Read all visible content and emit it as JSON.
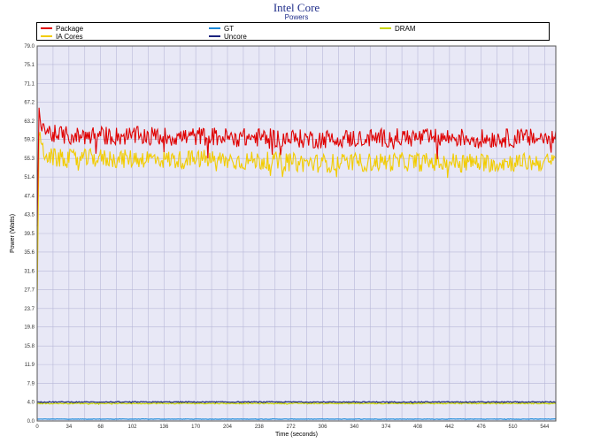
{
  "chart_data": {
    "type": "line",
    "title": "Intel Core",
    "subtitle": "Powers",
    "xlabel": "Time (seconds)",
    "ylabel": "Power (Watts)",
    "xlim": [
      0,
      556
    ],
    "ylim": [
      0,
      79.0
    ],
    "xticks": [
      "0",
      "34",
      "68",
      "102",
      "136",
      "170",
      "204",
      "238",
      "272",
      "306",
      "340",
      "374",
      "408",
      "442",
      "476",
      "510",
      "544"
    ],
    "yticks": [
      "0.0",
      "4.0",
      "7.9",
      "11.9",
      "15.8",
      "19.8",
      "23.7",
      "27.7",
      "31.6",
      "35.6",
      "39.5",
      "43.5",
      "47.4",
      "51.4",
      "55.3",
      "59.3",
      "63.2",
      "67.2",
      "71.1",
      "75.1",
      "79.0"
    ],
    "grid": true,
    "legend_position": "top",
    "series": [
      {
        "name": "Package",
        "color": "#e00000",
        "x": [
          0,
          2,
          4,
          8,
          15,
          25,
          40,
          60,
          90,
          120,
          150,
          180,
          210,
          240,
          270,
          300,
          330,
          360,
          390,
          420,
          450,
          480,
          510,
          540,
          556
        ],
        "values": [
          41.0,
          66.0,
          63.5,
          61.5,
          60.5,
          60.2,
          60.0,
          60.2,
          60.0,
          60.1,
          59.8,
          60.0,
          59.7,
          59.7,
          59.5,
          59.4,
          59.5,
          59.6,
          59.7,
          59.6,
          59.7,
          59.5,
          59.6,
          59.6,
          59.6
        ],
        "noise": 2.0
      },
      {
        "name": "GT",
        "color": "#1a88d8",
        "x": [
          0,
          556
        ],
        "values": [
          0.4,
          0.4
        ],
        "noise": 0.05
      },
      {
        "name": "DRAM",
        "color": "#c8d400",
        "x": [
          0,
          556
        ],
        "values": [
          3.7,
          3.7
        ],
        "noise": 0.1
      },
      {
        "name": "IA Cores",
        "color": "#f2cc00",
        "x": [
          0,
          2,
          4,
          8,
          15,
          25,
          40,
          60,
          90,
          120,
          150,
          180,
          210,
          240,
          270,
          300,
          330,
          360,
          390,
          420,
          450,
          480,
          510,
          540,
          556
        ],
        "values": [
          25.0,
          60.0,
          58.0,
          56.5,
          55.5,
          55.3,
          55.2,
          55.4,
          55.2,
          55.3,
          55.0,
          55.2,
          54.8,
          54.8,
          54.5,
          54.3,
          54.4,
          54.5,
          54.6,
          54.5,
          54.6,
          54.4,
          54.5,
          54.5,
          54.5
        ],
        "noise": 2.0
      },
      {
        "name": "Uncore",
        "color": "#1a237e",
        "x": [
          0,
          556
        ],
        "values": [
          4.0,
          4.0
        ],
        "noise": 0.1
      }
    ]
  }
}
